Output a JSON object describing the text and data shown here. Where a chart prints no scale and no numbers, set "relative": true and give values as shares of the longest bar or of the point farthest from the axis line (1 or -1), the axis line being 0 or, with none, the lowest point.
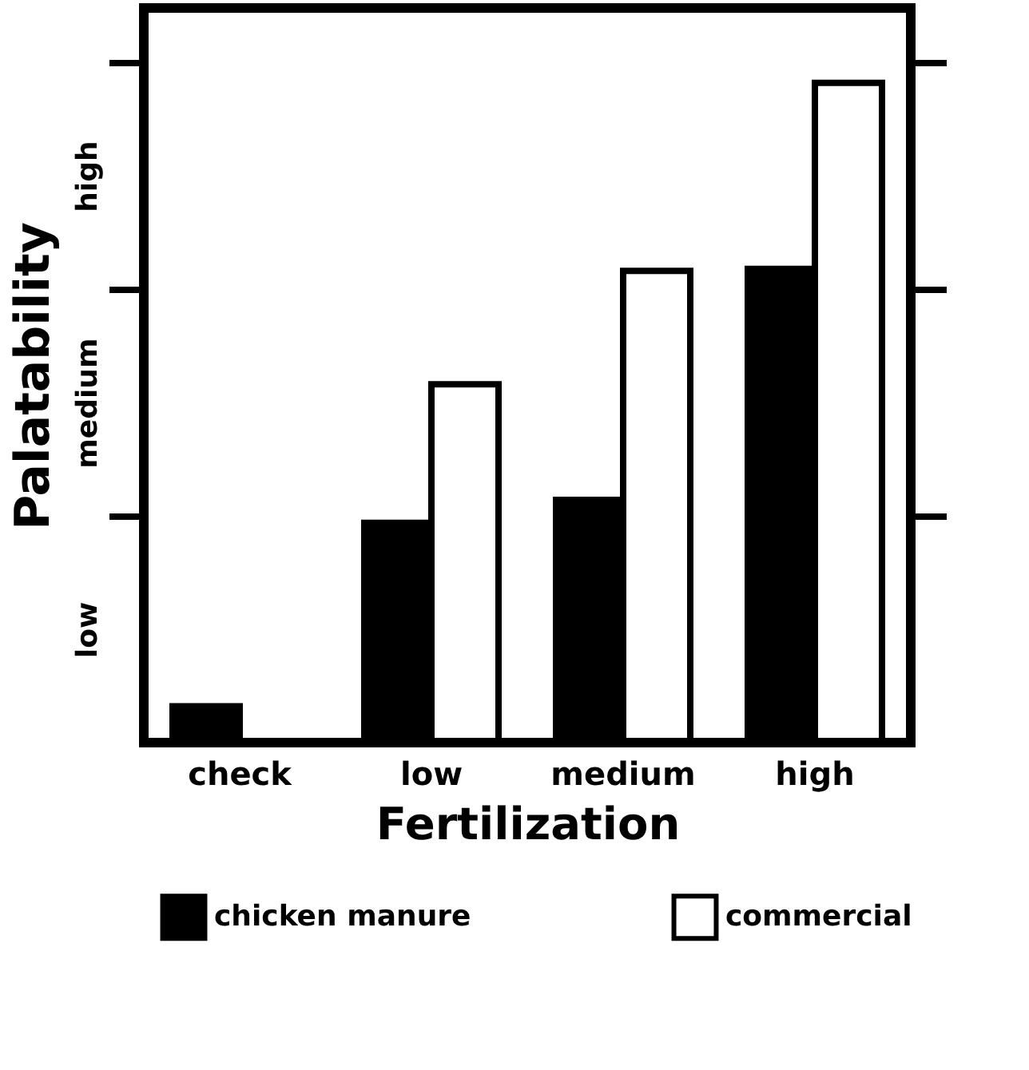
{
  "chart_data": {
    "type": "bar",
    "xlabel": "Fertilization",
    "ylabel": "Palatability",
    "relative": true,
    "categories": [
      "check",
      "low",
      "medium",
      "high"
    ],
    "series": [
      {
        "name": "chicken manure",
        "color": "#000000",
        "values": [
          0.055,
          0.333,
          0.368,
          0.718
        ]
      },
      {
        "name": "commercial",
        "color": "#ffffff",
        "values": [
          null,
          0.543,
          0.715,
          1.0
        ]
      }
    ],
    "annotations": [
      "low",
      "medium",
      "high"
    ],
    "legend": "bottom"
  }
}
